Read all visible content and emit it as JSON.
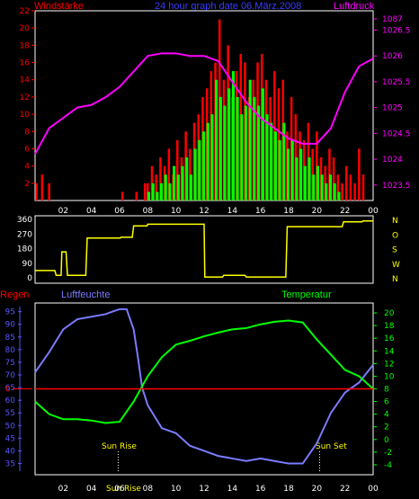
{
  "header": {
    "wind_label": "Windstärke",
    "title": "24 hour graph  date  06.März.2008",
    "pressure_label": "Luftdruck"
  },
  "lower": {
    "rain_label": "Regen",
    "humidity_label": "Luftfeuchte",
    "temperature_label": "Temperatur",
    "sunrise_label": "Sun Rise",
    "sunset_label": "Sun Set",
    "sunrise_time_label": "Sun Rise"
  },
  "colors": {
    "wind_red": "#ff0000",
    "gust_green": "#00ff00",
    "pressure": "#ff00ff",
    "direction": "#ffff00",
    "humidity": "#7b7bff",
    "temperature": "#00ff00",
    "rain": "#ff0000",
    "rain_axis": "#ff0000",
    "humidity_axis": "#5555ff",
    "temperature_axis": "#00ff00",
    "frame": "#ffffff"
  },
  "chart_data": [
    {
      "type": "bar",
      "name": "wind",
      "ylabel": "Windstärke",
      "ylim": [
        0,
        22
      ],
      "y_ticks": [
        2,
        4,
        6,
        8,
        10,
        12,
        14,
        16,
        18,
        20,
        22
      ],
      "x_ticks": [
        "02",
        "04",
        "06",
        "08",
        "10",
        "12",
        "14",
        "16",
        "18",
        "20",
        "22",
        "00"
      ],
      "x_tick_hours": [
        2,
        4,
        6,
        8,
        10,
        12,
        14,
        16,
        18,
        20,
        22,
        24
      ],
      "series": [
        {
          "name": "wind",
          "x": [
            0.1,
            0.5,
            1.0,
            6.2,
            7.2,
            7.8,
            8.0,
            8.3,
            8.6,
            8.9,
            9.2,
            9.5,
            9.8,
            10.1,
            10.4,
            10.7,
            11.0,
            11.3,
            11.6,
            11.9,
            12.2,
            12.5,
            12.8,
            13.1,
            13.4,
            13.7,
            14.0,
            14.3,
            14.6,
            14.9,
            15.2,
            15.5,
            15.8,
            16.1,
            16.4,
            16.7,
            17.0,
            17.3,
            17.6,
            17.9,
            18.2,
            18.5,
            18.8,
            19.1,
            19.4,
            19.7,
            20.0,
            20.3,
            20.6,
            20.9,
            21.2,
            21.5,
            21.8,
            22.1,
            22.4,
            22.7,
            23.0,
            23.3
          ],
          "values": [
            2,
            3,
            2,
            1,
            1,
            2,
            2,
            4,
            3,
            5,
            4,
            6,
            3,
            7,
            5,
            8,
            6,
            9,
            10,
            12,
            13,
            15,
            16,
            21,
            14,
            18,
            12,
            15,
            17,
            16,
            12,
            14,
            16,
            17,
            14,
            12,
            15,
            13,
            14,
            8,
            12,
            10,
            8,
            7,
            9,
            6,
            8,
            5,
            4,
            6,
            5,
            3,
            2,
            4,
            3,
            2,
            6,
            3
          ]
        },
        {
          "name": "gust",
          "x": [
            8.0,
            8.3,
            8.6,
            8.9,
            9.2,
            9.5,
            9.8,
            10.1,
            10.4,
            10.7,
            11.0,
            11.3,
            11.6,
            11.9,
            12.2,
            12.5,
            12.8,
            13.1,
            13.4,
            13.7,
            14.0,
            14.3,
            14.6,
            14.9,
            15.2,
            15.5,
            15.8,
            16.1,
            16.4,
            16.7,
            17.0,
            17.3,
            17.6,
            17.9,
            18.2,
            18.5,
            18.8,
            19.1,
            19.4,
            19.7,
            20.0,
            20.3,
            20.6,
            20.9,
            21.2,
            21.5
          ],
          "values": [
            1,
            2,
            1,
            2,
            3,
            2,
            4,
            3,
            4,
            5,
            3,
            6,
            7,
            8,
            9,
            10,
            14,
            12,
            11,
            13,
            15,
            12,
            10,
            11,
            14,
            12,
            11,
            13,
            10,
            9,
            8,
            7,
            9,
            6,
            7,
            5,
            6,
            4,
            5,
            3,
            4,
            3,
            2,
            3,
            2,
            1
          ]
        }
      ],
      "secondary": {
        "name": "pressure",
        "ylabel": "Luftdruck",
        "ylim": [
          1023,
          1087
        ],
        "y_ticks": [
          1023.5,
          1024,
          1024.5,
          1025,
          1025.5,
          1026,
          1026.5,
          1087
        ],
        "x": [
          0,
          1,
          2,
          3,
          4,
          5,
          6,
          7,
          8,
          9,
          10,
          11,
          12,
          13,
          14,
          15,
          16,
          17,
          18,
          19,
          20,
          21,
          22,
          23,
          24
        ],
        "values": [
          1024.1,
          1024.6,
          1024.8,
          1025.0,
          1025.05,
          1025.2,
          1025.4,
          1025.7,
          1026.0,
          1026.05,
          1026.05,
          1026.0,
          1026.0,
          1025.9,
          1025.5,
          1025.1,
          1024.8,
          1024.6,
          1024.4,
          1024.3,
          1024.3,
          1024.6,
          1025.3,
          1025.8,
          1025.95
        ]
      }
    },
    {
      "type": "line",
      "name": "wind_direction",
      "ylim": [
        0,
        360
      ],
      "y_ticks": [
        0,
        90,
        180,
        270,
        360
      ],
      "right_ticks": [
        "N",
        "W",
        "S",
        "O",
        "N"
      ],
      "x": [
        0,
        1.4,
        1.5,
        1.85,
        1.9,
        2.2,
        2.3,
        3.6,
        3.7,
        6.05,
        6.1,
        6.9,
        7.0,
        7.95,
        8.0,
        12.0,
        12.05,
        13.3,
        13.4,
        14.9,
        15.0,
        17.8,
        17.9,
        21.8,
        21.9,
        23.2,
        23.3,
        24
      ],
      "values": [
        45,
        45,
        15,
        15,
        160,
        160,
        15,
        15,
        245,
        245,
        250,
        250,
        320,
        320,
        330,
        330,
        5,
        5,
        15,
        15,
        5,
        5,
        315,
        315,
        345,
        345,
        350,
        350
      ]
    },
    {
      "type": "line",
      "name": "lower",
      "x_ticks": [
        "02",
        "04",
        "06",
        "08",
        "10",
        "12",
        "14",
        "16",
        "18",
        "20",
        "22",
        "00"
      ],
      "x_tick_hours": [
        2,
        4,
        6,
        8,
        10,
        12,
        14,
        16,
        18,
        20,
        22,
        24
      ],
      "sunrise_hour": 5.9,
      "sunset_hour": 20.2,
      "rain_axis": {
        "label": "Regen",
        "tick": "0",
        "value": 0
      },
      "humidity_axis": {
        "label": "Luftfeuchte",
        "ylim": [
          32,
          97
        ],
        "y_ticks": [
          35,
          40,
          45,
          50,
          55,
          60,
          65,
          70,
          75,
          80,
          85,
          90,
          95
        ]
      },
      "temperature_axis": {
        "label": "Temperatur",
        "ylim": [
          -5,
          21
        ],
        "y_ticks": [
          -4,
          -2,
          0,
          2,
          4,
          6,
          8,
          10,
          12,
          14,
          16,
          18,
          20
        ]
      },
      "series": [
        {
          "name": "humidity",
          "x": [
            0,
            1,
            2,
            3,
            4,
            5,
            6,
            6.5,
            7,
            7.3,
            7.6,
            8,
            9,
            10,
            11,
            12,
            13,
            14,
            15,
            16,
            17,
            18,
            19,
            20,
            21,
            22,
            23,
            24
          ],
          "values": [
            71,
            79,
            88,
            92,
            93,
            94,
            96,
            96,
            88,
            77,
            65,
            58,
            49,
            47,
            42,
            40,
            38,
            37,
            36,
            37,
            36,
            35,
            35,
            43,
            55,
            63,
            67,
            74
          ]
        },
        {
          "name": "temperature",
          "x": [
            0,
            1,
            2,
            3,
            4,
            5,
            6,
            7,
            7.5,
            8,
            9,
            10,
            11,
            12,
            13,
            14,
            15,
            16,
            17,
            18,
            19,
            20,
            21,
            22,
            23,
            24
          ],
          "values": [
            6,
            4,
            3.2,
            3.2,
            3,
            2.6,
            2.8,
            6,
            8,
            10,
            13,
            15,
            15.6,
            16.3,
            16.9,
            17.4,
            17.6,
            18.2,
            18.6,
            18.8,
            18.5,
            15.8,
            13.4,
            11,
            10,
            8
          ]
        },
        {
          "name": "rain",
          "x": [
            0,
            24
          ],
          "values": [
            0,
            0
          ]
        }
      ]
    }
  ]
}
